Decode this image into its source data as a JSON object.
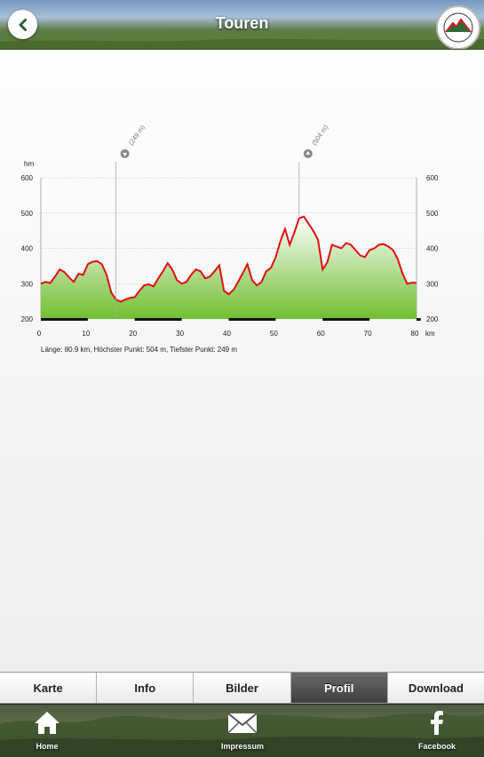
{
  "header": {
    "title": "Touren",
    "logo_text_top": "VULKAN VOGELSBERG",
    "logo_text_bottom": "Hessens Mitte"
  },
  "chart_data": {
    "type": "area",
    "y_unit_label": "hm",
    "x_unit_label": "km",
    "xlim": [
      0,
      80
    ],
    "ylim": [
      200,
      600
    ],
    "x_ticks": [
      0,
      10,
      20,
      30,
      40,
      50,
      60,
      70,
      80
    ],
    "y_ticks": [
      200,
      300,
      400,
      500,
      600
    ],
    "grid": true,
    "line_color": "#e01010",
    "fill_top_color": "#ffffff",
    "fill_bottom_color": "#6fbe2f",
    "points": [
      [
        0,
        300
      ],
      [
        1,
        305
      ],
      [
        2,
        302
      ],
      [
        3,
        320
      ],
      [
        4,
        340
      ],
      [
        5,
        333
      ],
      [
        6,
        318
      ],
      [
        7,
        305
      ],
      [
        8,
        328
      ],
      [
        9,
        325
      ],
      [
        10,
        355
      ],
      [
        11,
        362
      ],
      [
        12,
        364
      ],
      [
        13,
        355
      ],
      [
        14,
        325
      ],
      [
        15,
        275
      ],
      [
        16,
        255
      ],
      [
        17,
        249
      ],
      [
        18,
        255
      ],
      [
        19,
        260
      ],
      [
        20,
        262
      ],
      [
        21,
        280
      ],
      [
        22,
        295
      ],
      [
        23,
        298
      ],
      [
        24,
        292
      ],
      [
        25,
        315
      ],
      [
        26,
        335
      ],
      [
        27,
        358
      ],
      [
        28,
        340
      ],
      [
        29,
        310
      ],
      [
        30,
        300
      ],
      [
        31,
        305
      ],
      [
        32,
        325
      ],
      [
        33,
        340
      ],
      [
        34,
        335
      ],
      [
        35,
        315
      ],
      [
        36,
        320
      ],
      [
        37,
        335
      ],
      [
        38,
        352
      ],
      [
        39,
        280
      ],
      [
        40,
        270
      ],
      [
        41,
        282
      ],
      [
        42,
        305
      ],
      [
        43,
        330
      ],
      [
        44,
        355
      ],
      [
        45,
        310
      ],
      [
        46,
        295
      ],
      [
        47,
        305
      ],
      [
        48,
        335
      ],
      [
        49,
        345
      ],
      [
        50,
        375
      ],
      [
        51,
        420
      ],
      [
        52,
        455
      ],
      [
        53,
        410
      ],
      [
        54,
        445
      ],
      [
        55,
        485
      ],
      [
        56,
        490
      ],
      [
        57,
        470
      ],
      [
        58,
        450
      ],
      [
        59,
        425
      ],
      [
        60,
        340
      ],
      [
        61,
        360
      ],
      [
        62,
        410
      ],
      [
        63,
        405
      ],
      [
        64,
        400
      ],
      [
        65,
        415
      ],
      [
        66,
        410
      ],
      [
        67,
        395
      ],
      [
        68,
        380
      ],
      [
        69,
        375
      ],
      [
        70,
        395
      ],
      [
        71,
        400
      ],
      [
        72,
        410
      ],
      [
        73,
        412
      ],
      [
        74,
        405
      ],
      [
        75,
        395
      ],
      [
        76,
        370
      ],
      [
        77,
        330
      ],
      [
        78,
        300
      ],
      [
        79,
        303
      ],
      [
        80,
        302
      ]
    ],
    "markers": [
      {
        "x": 16,
        "label": "(249 m)",
        "kind": "min"
      },
      {
        "x": 55,
        "label": "(504 m)",
        "kind": "max"
      }
    ],
    "distance_bands": [
      [
        0,
        10
      ],
      [
        20,
        30
      ],
      [
        40,
        50
      ],
      [
        60,
        70
      ],
      [
        80,
        80.9
      ]
    ],
    "caption": "Länge: 80.9 km, Höchster Punkt: 504 m, Tiefster Punkt: 249 m"
  },
  "tabs": [
    {
      "label": "Karte",
      "active": false
    },
    {
      "label": "Info",
      "active": false
    },
    {
      "label": "Bilder",
      "active": false
    },
    {
      "label": "Profil",
      "active": true
    },
    {
      "label": "Download",
      "active": false
    }
  ],
  "footer": {
    "home_label": "Home",
    "impressum_label": "Impressum",
    "facebook_label": "Facebook"
  }
}
